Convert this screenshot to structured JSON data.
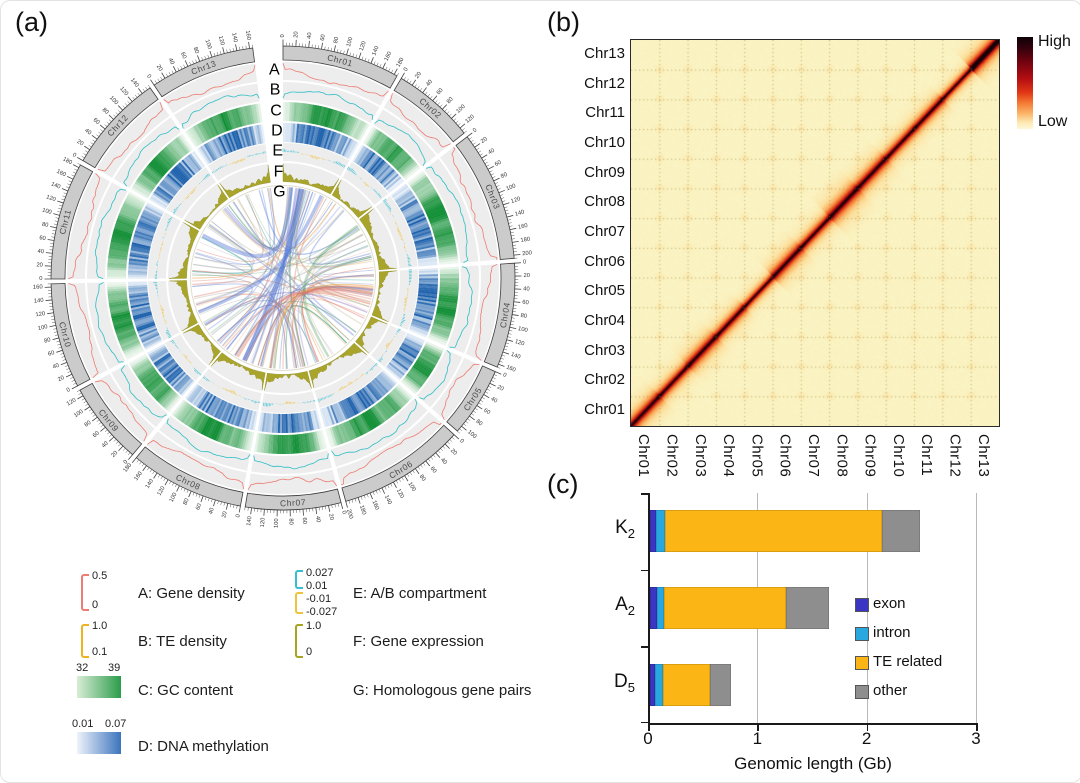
{
  "panels": {
    "a": "(a)",
    "b": "(b)",
    "c": "(c)"
  },
  "circos": {
    "track_letters": [
      "A",
      "B",
      "C",
      "D",
      "E",
      "F",
      "G"
    ],
    "tick_interval_mb": 20,
    "chromosomes": [
      {
        "name": "Chr01",
        "length_mb": 185
      },
      {
        "name": "Chr02",
        "length_mb": 130
      },
      {
        "name": "Chr03",
        "length_mb": 205
      },
      {
        "name": "Chr04",
        "length_mb": 165
      },
      {
        "name": "Chr05",
        "length_mb": 110
      },
      {
        "name": "Chr06",
        "length_mb": 200
      },
      {
        "name": "Chr07",
        "length_mb": 150
      },
      {
        "name": "Chr08",
        "length_mb": 180
      },
      {
        "name": "Chr09",
        "length_mb": 130
      },
      {
        "name": "Chr10",
        "length_mb": 165
      },
      {
        "name": "Chr11",
        "length_mb": 185
      },
      {
        "name": "Chr12",
        "length_mb": 155
      },
      {
        "name": "Chr13",
        "length_mb": 165
      }
    ],
    "colors": {
      "band_fill": "#cbcbcb",
      "band_stroke": "#3d3d3d",
      "track_bg": "#ededed",
      "gene_density_line": "#ed7c72",
      "te_density_line": "#2ebec5",
      "gc_low": "#eef7ee",
      "gc_high": "#149038",
      "meth_low": "#e9f1fa",
      "meth_high": "#2063ad",
      "compartment_a": "#45c2d6",
      "compartment_b": "#eec34a",
      "expression_fill": "#a5a122"
    },
    "legend": [
      {
        "key": "A",
        "label": "A: Gene density",
        "type": "bracket",
        "color": "#ec7d72",
        "max": "0.5",
        "min": "0"
      },
      {
        "key": "B",
        "label": "B: TE density",
        "type": "bracket",
        "color": "#edb320",
        "max": "1.0",
        "min": "0.1"
      },
      {
        "key": "C",
        "label": "C: GC content",
        "type": "gradient",
        "from": "#d9edd6",
        "to": "#2b9c4a",
        "min": "32",
        "max": "39"
      },
      {
        "key": "D",
        "label": "D: DNA methylation",
        "type": "gradient",
        "from": "#eef3fa",
        "to": "#3c74bd",
        "min": "0.01",
        "max": "0.07"
      },
      {
        "key": "E",
        "label": "E: A/B compartment",
        "type": "double-bracket",
        "brackets": [
          {
            "color": "#38bdd2",
            "max": "0.027",
            "min": "0.01"
          },
          {
            "color": "#eec43c",
            "max": "-0.01",
            "min": "-0.027"
          }
        ]
      },
      {
        "key": "F",
        "label": "F: Gene expression",
        "type": "bracket",
        "color": "#a8a41f",
        "max": "1.0",
        "min": "0"
      },
      {
        "key": "G",
        "label": "G: Homologous gene pairs",
        "type": "none"
      }
    ]
  },
  "heatmap": {
    "x_labels": [
      "Chr01",
      "Chr02",
      "Chr03",
      "Chr04",
      "Chr05",
      "Chr06",
      "Chr07",
      "Chr08",
      "Chr09",
      "Chr10",
      "Chr11",
      "Chr12",
      "Chr13"
    ],
    "y_labels": [
      "Chr13",
      "Chr12",
      "Chr11",
      "Chr10",
      "Chr09",
      "Chr08",
      "Chr07",
      "Chr06",
      "Chr05",
      "Chr04",
      "Chr03",
      "Chr02",
      "Chr01"
    ],
    "colorbar": {
      "high": "High",
      "low": "Low"
    }
  },
  "chart_data": [
    {
      "id": "b",
      "type": "heatmap",
      "title": "Hi-C chromatin contact matrix",
      "x_categories": [
        "Chr01",
        "Chr02",
        "Chr03",
        "Chr04",
        "Chr05",
        "Chr06",
        "Chr07",
        "Chr08",
        "Chr09",
        "Chr10",
        "Chr11",
        "Chr12",
        "Chr13"
      ],
      "y_categories": [
        "Chr13",
        "Chr12",
        "Chr11",
        "Chr10",
        "Chr09",
        "Chr08",
        "Chr07",
        "Chr06",
        "Chr05",
        "Chr04",
        "Chr03",
        "Chr02",
        "Chr01"
      ],
      "scale": {
        "high_label": "High",
        "low_label": "Low"
      },
      "pattern": "strong red intra-chromosomal diagonal from bottom-left to top-right, pale-yellow inter-chromosomal background, dotted grid at chromosome boundaries",
      "legend_position": "right"
    },
    {
      "id": "c",
      "type": "bar",
      "orientation": "horizontal",
      "stacked": true,
      "categories": [
        "K2",
        "A2",
        "D5"
      ],
      "category_labels": [
        {
          "base": "K",
          "sub": "2"
        },
        {
          "base": "A",
          "sub": "2"
        },
        {
          "base": "D",
          "sub": "5"
        }
      ],
      "series": [
        {
          "name": "exon",
          "color": "#3a35c2",
          "values": [
            0.06,
            0.07,
            0.05
          ]
        },
        {
          "name": "intron",
          "color": "#29a8e0",
          "values": [
            0.08,
            0.06,
            0.07
          ]
        },
        {
          "name": "TE related",
          "color": "#fbb615",
          "values": [
            1.99,
            1.12,
            0.43
          ]
        },
        {
          "name": "other",
          "color": "#8e8e8e",
          "values": [
            0.34,
            0.39,
            0.2
          ]
        }
      ],
      "totals_gb": [
        2.47,
        1.64,
        0.75
      ],
      "xlabel": "Genomic length (Gb)",
      "xlim": [
        0,
        3
      ],
      "xticks": [
        "0",
        "1",
        "2",
        "3"
      ],
      "grid": true,
      "legend_position": "right"
    }
  ]
}
